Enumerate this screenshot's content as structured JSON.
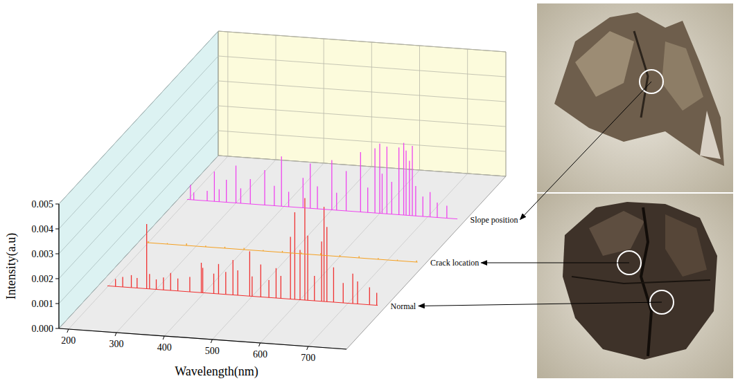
{
  "chart_data": {
    "type": "waterfall",
    "x_label": "Wavelength(nm)",
    "y_label": "Intensity(a.u)",
    "xlim": [
      180,
      780
    ],
    "xticks": [
      200,
      300,
      400,
      500,
      600,
      700
    ],
    "ylim": [
      0,
      0.005
    ],
    "yticks": [
      {
        "value": 0,
        "label": "0.000"
      },
      {
        "value": 0.001,
        "label": "0.001"
      },
      {
        "value": 0.002,
        "label": "0.002"
      },
      {
        "value": 0.003,
        "label": "0.003"
      },
      {
        "value": 0.004,
        "label": "0.004"
      },
      {
        "value": 0.005,
        "label": "0.005"
      }
    ],
    "grid": true,
    "series": [
      {
        "name": "Normal",
        "color": "#f03030",
        "x": [
          215,
          230,
          248,
          260,
          280,
          286,
          300,
          315,
          330,
          345,
          370,
          394,
          397,
          420,
          430,
          445,
          460,
          470,
          495,
          500,
          518,
          535,
          550,
          560,
          580,
          589,
          600,
          610,
          616,
          630,
          645,
          650,
          656,
          670,
          690,
          710,
          720,
          745,
          760
        ],
        "values": [
          0.0003,
          0.0004,
          0.0005,
          0.0004,
          0.0026,
          0.0006,
          0.0004,
          0.0005,
          0.0007,
          0.0005,
          0.0006,
          0.0012,
          0.001,
          0.0008,
          0.0012,
          0.0009,
          0.0014,
          0.001,
          0.0018,
          0.0008,
          0.0013,
          0.0007,
          0.0012,
          0.0009,
          0.0025,
          0.0035,
          0.002,
          0.0041,
          0.0026,
          0.001,
          0.0024,
          0.0038,
          0.003,
          0.0014,
          0.0008,
          0.0012,
          0.0009,
          0.0007,
          0.0005
        ]
      },
      {
        "name": "Crack location",
        "color": "#f5a020",
        "x": [
          200,
          240,
          280,
          320,
          360,
          400,
          440,
          480,
          520,
          560,
          600,
          640,
          680,
          720,
          760
        ],
        "values": [
          6e-05,
          4e-05,
          8e-05,
          5e-05,
          6e-05,
          7e-05,
          4e-05,
          6e-05,
          5e-05,
          8e-05,
          6e-05,
          7e-05,
          5e-05,
          4e-05,
          6e-05
        ]
      },
      {
        "name": "Slope position",
        "color": "#ee44ee",
        "x": [
          205,
          212,
          240,
          255,
          265,
          280,
          300,
          310,
          330,
          360,
          380,
          395,
          410,
          440,
          455,
          470,
          500,
          510,
          530,
          560,
          575,
          590,
          600,
          605,
          615,
          625,
          640,
          650,
          655,
          662,
          668,
          675,
          690,
          705,
          720,
          740
        ],
        "values": [
          0.0006,
          0.0003,
          0.0004,
          0.0012,
          0.0005,
          0.0009,
          0.0015,
          0.0006,
          0.001,
          0.0014,
          0.0008,
          0.002,
          0.0006,
          0.0012,
          0.0018,
          0.0009,
          0.002,
          0.0007,
          0.0016,
          0.0024,
          0.001,
          0.0026,
          0.0028,
          0.0016,
          0.0027,
          0.0013,
          0.0027,
          0.0029,
          0.0026,
          0.0022,
          0.0028,
          0.0012,
          0.0008,
          0.001,
          0.0006,
          0.0005
        ]
      }
    ]
  }
}
